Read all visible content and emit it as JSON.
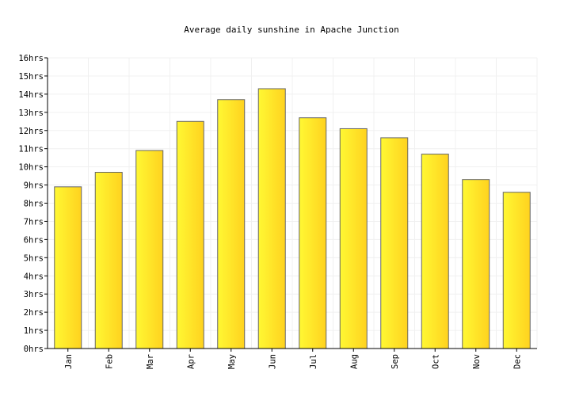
{
  "chart_data": {
    "type": "bar",
    "title": "Average daily sunshine in Apache Junction",
    "xlabel": "",
    "ylabel": "",
    "unit_suffix": "hrs",
    "categories": [
      "Jan",
      "Feb",
      "Mar",
      "Apr",
      "May",
      "Jun",
      "Jul",
      "Aug",
      "Sep",
      "Oct",
      "Nov",
      "Dec"
    ],
    "series": [
      {
        "values": [
          8.9,
          9.7,
          10.9,
          12.5,
          13.7,
          14.3,
          12.7,
          12.1,
          11.6,
          10.7,
          9.3,
          8.6
        ]
      }
    ],
    "ylim": [
      0,
      16
    ],
    "yticks": [
      0,
      1,
      2,
      3,
      4,
      5,
      6,
      7,
      8,
      9,
      10,
      11,
      12,
      13,
      14,
      15,
      16
    ],
    "ytick_labels": [
      "0hrs",
      "1hrs",
      "2hrs",
      "3hrs",
      "4hrs",
      "5hrs",
      "6hrs",
      "7hrs",
      "8hrs",
      "9hrs",
      "10hrs",
      "11hrs",
      "12hrs",
      "13hrs",
      "14hrs",
      "15hrs",
      "16hrs"
    ],
    "grid": true,
    "colors": {
      "bar_light": "#fff833",
      "bar_dark": "#ffd21f",
      "bar_stroke": "#666666",
      "grid": "#f0f0f0",
      "axis": "#000000"
    }
  }
}
